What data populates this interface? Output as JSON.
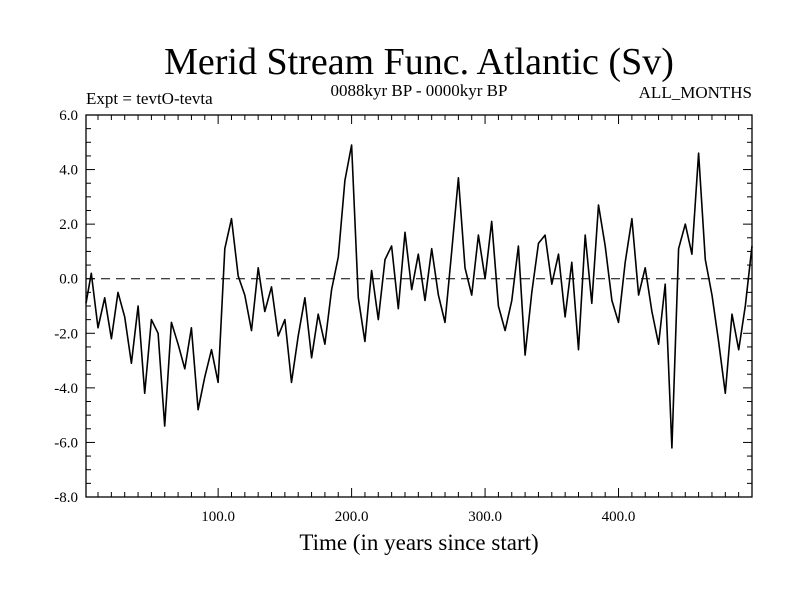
{
  "chart_data": {
    "type": "line",
    "title": "Merid Stream Func. Atlantic (Sv)",
    "subtitle_left": "Expt = tevtO-tevta",
    "subtitle_center": "0088kyr BP - 0000kyr BP",
    "subtitle_right": "ALL_MONTHS",
    "xlabel": "Time (in years since start)",
    "ylabel": "",
    "xlim": [
      1,
      500
    ],
    "ylim": [
      -8,
      6
    ],
    "x_ticks": [
      100,
      200,
      300,
      400
    ],
    "x_tick_labels": [
      "100.0",
      "200.0",
      "300.0",
      "400.0"
    ],
    "y_ticks": [
      6,
      4,
      2,
      0,
      -2,
      -4,
      -6,
      -8
    ],
    "y_tick_labels": [
      "6.0",
      "4.0",
      "2.0",
      "0.0",
      "-2.0",
      "-4.0",
      "-6.0",
      "-8.0"
    ],
    "reference_line": {
      "y": 0,
      "style": "dashed"
    },
    "grid": false,
    "line_color": "#000000",
    "series": [
      {
        "x": [
          1,
          5,
          10,
          15,
          20,
          25,
          30,
          35,
          40,
          45,
          50,
          55,
          60,
          65,
          70,
          75,
          80,
          85,
          90,
          95,
          100,
          105,
          110,
          115,
          120,
          125,
          130,
          135,
          140,
          145,
          150,
          155,
          160,
          165,
          170,
          175,
          180,
          185,
          190,
          195,
          200,
          205,
          210,
          215,
          220,
          225,
          230,
          235,
          240,
          245,
          250,
          255,
          260,
          265,
          270,
          275,
          280,
          285,
          290,
          295,
          300,
          305,
          310,
          315,
          320,
          325,
          330,
          335,
          340,
          345,
          350,
          355,
          360,
          365,
          370,
          375,
          380,
          385,
          390,
          395,
          400,
          405,
          410,
          415,
          420,
          425,
          430,
          435,
          440,
          445,
          450,
          455,
          460,
          465,
          470,
          475,
          480,
          485,
          490,
          495,
          500
        ],
        "values": [
          -0.9,
          0.2,
          -1.8,
          -0.7,
          -2.2,
          -0.5,
          -1.4,
          -3.1,
          -1.0,
          -4.2,
          -1.5,
          -2.0,
          -5.4,
          -1.6,
          -2.4,
          -3.3,
          -1.8,
          -4.8,
          -3.6,
          -2.6,
          -3.8,
          1.1,
          2.2,
          0.1,
          -0.6,
          -1.9,
          0.4,
          -1.2,
          -0.3,
          -2.1,
          -1.5,
          -3.8,
          -2.1,
          -0.7,
          -2.9,
          -1.3,
          -2.4,
          -0.4,
          0.8,
          3.6,
          4.9,
          -0.7,
          -2.3,
          0.3,
          -1.5,
          0.7,
          1.2,
          -1.1,
          1.7,
          -0.4,
          0.9,
          -0.8,
          1.1,
          -0.6,
          -1.6,
          1.0,
          3.7,
          0.4,
          -0.6,
          1.6,
          0.0,
          2.1,
          -1.0,
          -1.9,
          -0.8,
          1.2,
          -2.8,
          -0.5,
          1.3,
          1.6,
          -0.2,
          0.9,
          -1.4,
          0.6,
          -2.6,
          1.6,
          -0.9,
          2.7,
          1.2,
          -0.8,
          -1.6,
          0.6,
          2.2,
          -0.6,
          0.4,
          -1.2,
          -2.4,
          -0.2,
          -6.2,
          1.1,
          2.0,
          0.9,
          4.6,
          0.7,
          -0.6,
          -2.3,
          -4.2,
          -1.3,
          -2.6,
          -1.0,
          1.2
        ]
      }
    ]
  }
}
